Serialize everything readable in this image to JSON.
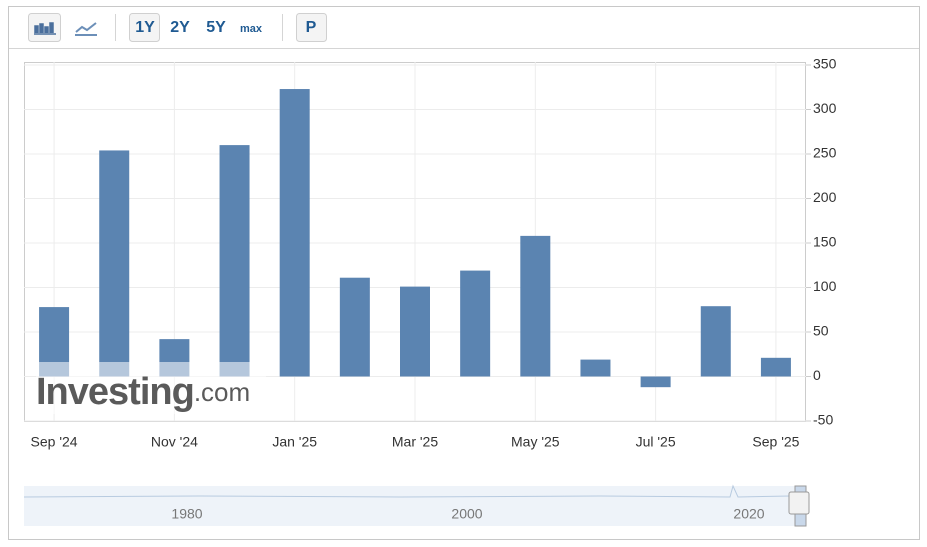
{
  "toolbar": {
    "ranges": [
      "1Y",
      "2Y",
      "5Y",
      "max"
    ],
    "period": "P"
  },
  "chart_data": {
    "type": "bar",
    "categories": [
      "Sep '24",
      null,
      "Nov '24",
      null,
      "Jan '25",
      null,
      "Mar '25",
      null,
      "May '25",
      null,
      "Jul '25",
      null,
      "Sep '25"
    ],
    "values": [
      78,
      254,
      42,
      260,
      323,
      111,
      101,
      119,
      158,
      19,
      -12,
      79,
      21
    ],
    "color": "#5b84b1",
    "ylim": [
      -50,
      350
    ],
    "yticks": [
      -50,
      0,
      50,
      100,
      150,
      200,
      250,
      300,
      350
    ],
    "grid": true
  },
  "logo": {
    "main": "Investing",
    "suffix": ".com"
  },
  "navigator": {
    "labels": [
      "1980",
      "2000",
      "2020"
    ]
  }
}
